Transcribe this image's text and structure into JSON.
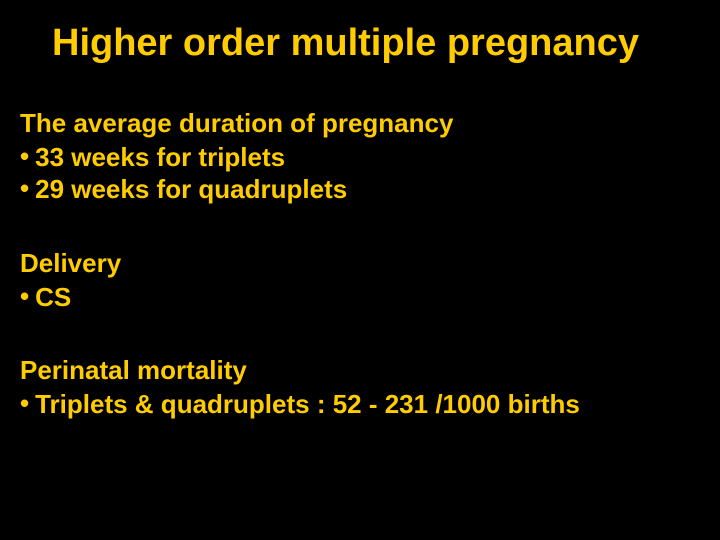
{
  "slide": {
    "background_color": "#000000",
    "text_color": "#ffcc00",
    "title": "Higher order multiple pregnancy",
    "title_fontsize": 38,
    "body_fontsize": 26,
    "sections": [
      {
        "heading": "The average duration of pregnancy",
        "bullets": [
          "33 weeks for triplets",
          "29 weeks for quadruplets"
        ]
      },
      {
        "heading": "Delivery",
        "bullets": [
          "CS"
        ]
      },
      {
        "heading": "Perinatal mortality",
        "bullets": [
          "Triplets & quadruplets : 52 - 231 /1000 births"
        ]
      }
    ]
  }
}
